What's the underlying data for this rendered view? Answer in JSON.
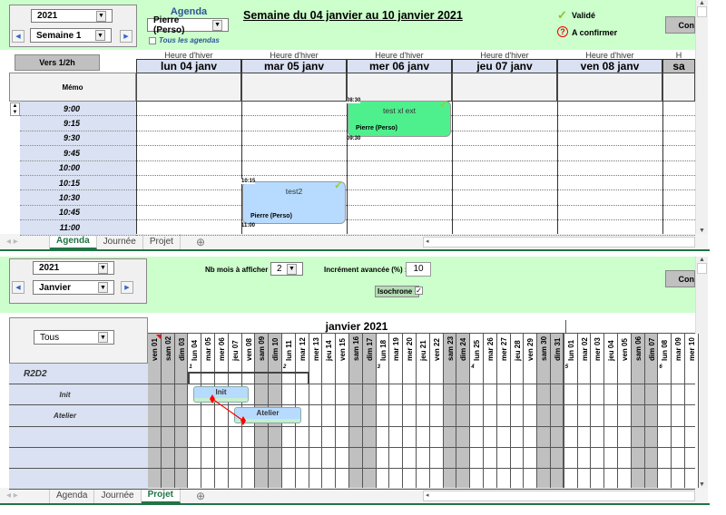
{
  "agenda": {
    "year": "2021",
    "week": "Semaine 1",
    "agenda_label": "Agenda",
    "agenda_select": "Pierre (Perso)",
    "all_agendas": "Tous les agendas",
    "title": "Semaine du 04 janvier au 10 janvier 2021",
    "legend": {
      "validated": "Validé",
      "to_confirm": "A confirmer"
    },
    "button_right": "Con",
    "half_hour_button": "Vers 1/2h",
    "memo": "Mémo",
    "days": [
      {
        "season": "Heure d'hiver",
        "label": "lun 04 janv"
      },
      {
        "season": "Heure d'hiver",
        "label": "mar 05 janv"
      },
      {
        "season": "Heure d'hiver",
        "label": "mer 06 janv"
      },
      {
        "season": "Heure d'hiver",
        "label": "jeu 07 janv"
      },
      {
        "season": "Heure d'hiver",
        "label": "ven 08 janv"
      },
      {
        "season": "H",
        "label": "sa"
      }
    ],
    "times": [
      "9:00",
      "9:15",
      "9:30",
      "9:45",
      "10:00",
      "10:15",
      "10:30",
      "10:45",
      "11:00"
    ],
    "events": [
      {
        "title": "test xl ext",
        "owner": "Pierre (Perso)",
        "start": "08:30",
        "end": "09:30",
        "day": "mer 06 janv",
        "color": "#4ef08e",
        "status": "validated"
      },
      {
        "title": "test2",
        "owner": "Pierre (Perso)",
        "start": "10:15",
        "end": "11:00",
        "day": "mar 05 janv",
        "color": "#b7dbff",
        "status": "validated"
      }
    ]
  },
  "tabs_top": {
    "items": [
      "Agenda",
      "Journée",
      "Projet"
    ],
    "active": "Agenda"
  },
  "tabs_bottom": {
    "items": [
      "Agenda",
      "Journée",
      "Projet"
    ],
    "active": "Projet"
  },
  "projet": {
    "year": "2021",
    "month": "Janvier",
    "nb_mois_label": "Nb mois à afficher :",
    "nb_mois": "2",
    "increment_label": "Incrément avancée (%) :",
    "increment": "10",
    "isochrone_label": "Isochrone :",
    "isochrone_checked": true,
    "button_right": "Con",
    "filter": "Tous",
    "month_title": "janvier 2021",
    "days": [
      "ven 01",
      "sam 02",
      "dim 03",
      "lun 04",
      "mar 05",
      "mer 06",
      "jeu 07",
      "ven 08",
      "sam 09",
      "dim 10",
      "lun 11",
      "mar 12",
      "mer 13",
      "jeu 14",
      "ven 15",
      "sam 16",
      "dim 17",
      "lun 18",
      "mar 19",
      "mer 20",
      "jeu 21",
      "ven 22",
      "sam 23",
      "dim 24",
      "lun 25",
      "mar 26",
      "mer 27",
      "jeu 28",
      "ven 29",
      "sam 30",
      "dim 31",
      "lun 01",
      "mar 02",
      "mer 03",
      "jeu 04",
      "ven 05",
      "sam 06",
      "dim 07",
      "lun 08",
      "mar 09",
      "mer 10"
    ],
    "holidays": [
      "ven 01"
    ],
    "week_numbers": [
      "1",
      "2",
      "3",
      "4",
      "5",
      "6"
    ],
    "rows": [
      {
        "label": "R2D2",
        "type": "project"
      },
      {
        "label": "Init",
        "type": "task",
        "bar": "Init"
      },
      {
        "label": "Atelier",
        "type": "task",
        "bar": "Atelier"
      },
      {
        "label": ""
      },
      {
        "label": ""
      },
      {
        "label": ""
      }
    ],
    "colors": {
      "task": "#b7dbff",
      "progress": "#c6efce",
      "weekend": "#c0c0c0",
      "link": "#ff0000"
    }
  }
}
